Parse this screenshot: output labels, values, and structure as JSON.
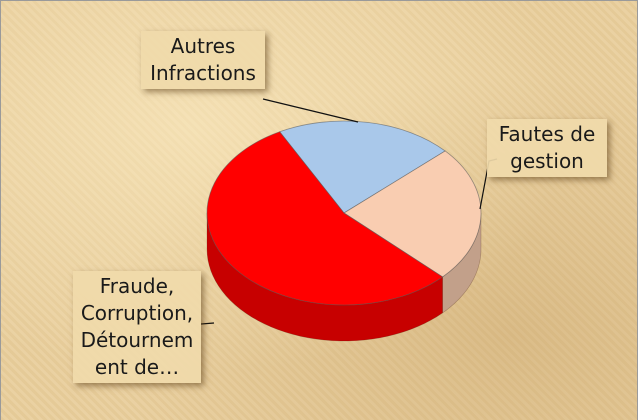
{
  "chart_data": {
    "type": "pie",
    "categories": [
      "Autres Infractions",
      "Fautes de gestion",
      "Fraude, Corruption, Détournement de…"
    ],
    "values": [
      21,
      24,
      55
    ],
    "colors": [
      "#a9c8ea",
      "#f9cdb1",
      "#ff0000"
    ]
  }
}
